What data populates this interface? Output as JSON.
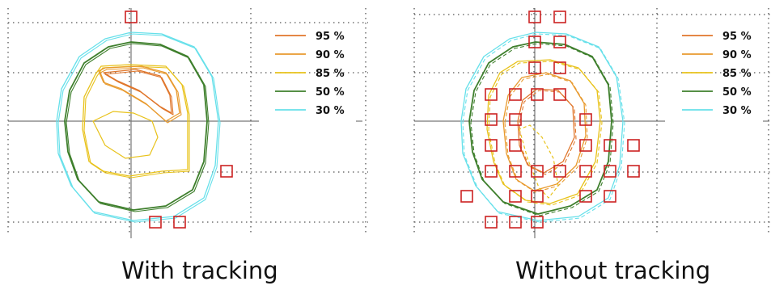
{
  "chart_data": [
    {
      "type": "contour",
      "caption": "With tracking",
      "legend": [
        {
          "label": "95 %",
          "level": 95,
          "color": "#E0762B"
        },
        {
          "label": "90 %",
          "level": 90,
          "color": "#E89A2E"
        },
        {
          "label": "85 %",
          "level": 85,
          "color": "#E8C21A"
        },
        {
          "label": "50 %",
          "level": 50,
          "color": "#3E7F2C"
        },
        {
          "label": "30 %",
          "level": 30,
          "color": "#66E0EA"
        }
      ],
      "legend_position": "top-right",
      "grid": true,
      "axes": "crosshair",
      "marker_count": 4,
      "marker_color": "#CC2222"
    },
    {
      "type": "contour",
      "caption": "Without tracking",
      "legend": [
        {
          "label": "95 %",
          "level": 95,
          "color": "#E0762B"
        },
        {
          "label": "90 %",
          "level": 90,
          "color": "#E89A2E"
        },
        {
          "label": "85 %",
          "level": 85,
          "color": "#E8C21A"
        },
        {
          "label": "50 %",
          "level": 50,
          "color": "#3E7F2C"
        },
        {
          "label": "30 %",
          "level": 30,
          "color": "#66E0EA"
        }
      ],
      "legend_position": "top-right",
      "grid": true,
      "axes": "crosshair",
      "marker_count": 33,
      "marker_color": "#CC2222"
    }
  ]
}
